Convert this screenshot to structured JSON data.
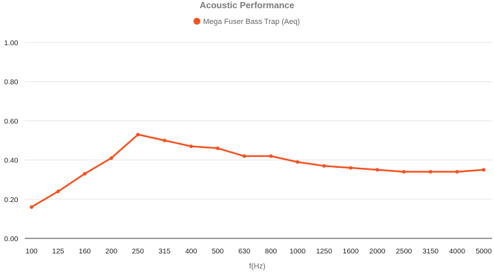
{
  "colors": {
    "series": "#f4511e",
    "title": "#7a7a7a",
    "grid": "#e3e3e3"
  },
  "chart_data": {
    "type": "line",
    "title": "Acoustic Performance",
    "xlabel": "f(Hz)",
    "ylabel": "",
    "ylim": [
      0,
      1
    ],
    "yticks": [
      "0.00",
      "0.20",
      "0.40",
      "0.60",
      "0.80",
      "1.00"
    ],
    "grid": true,
    "legend_position": "top-center",
    "categories": [
      "100",
      "125",
      "160",
      "200",
      "250",
      "315",
      "400",
      "500",
      "630",
      "800",
      "1000",
      "1250",
      "1600",
      "2000",
      "2500",
      "3150",
      "4000",
      "5000"
    ],
    "series": [
      {
        "name": "Mega Fuser Bass Trap (Aeq)",
        "color": "#f4511e",
        "values": [
          0.16,
          0.24,
          0.33,
          0.41,
          0.53,
          0.5,
          0.47,
          0.46,
          0.42,
          0.42,
          0.39,
          0.37,
          0.36,
          0.35,
          0.34,
          0.34,
          0.34,
          0.35
        ]
      }
    ]
  }
}
